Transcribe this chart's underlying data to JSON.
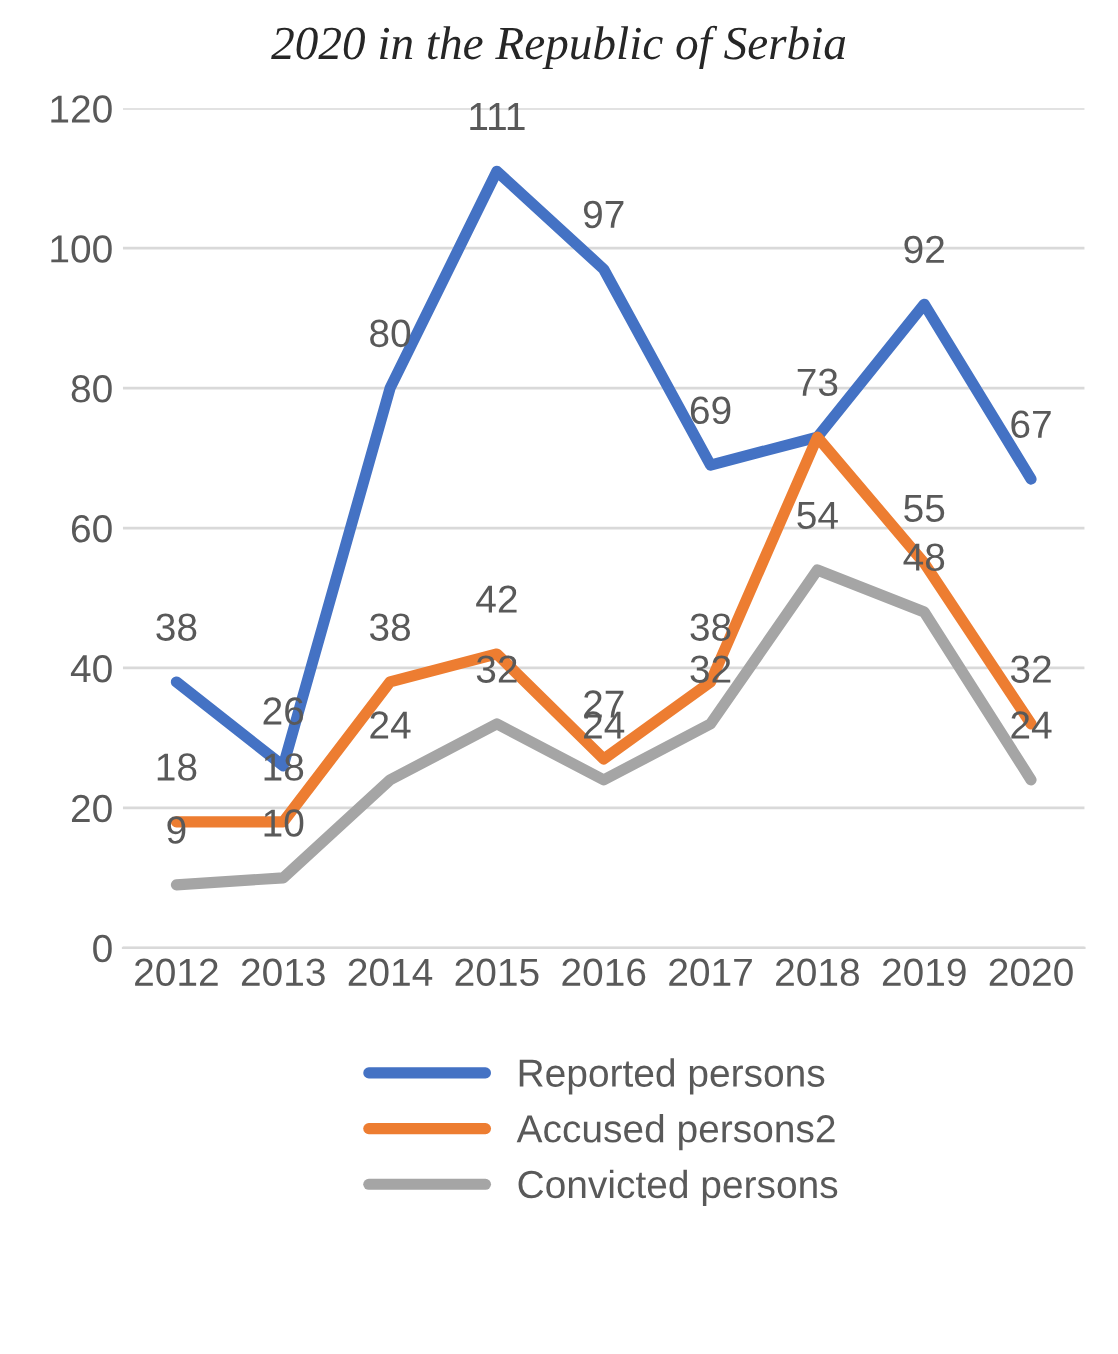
{
  "chart_data": {
    "type": "line",
    "title": "2020 in the Republic of Serbia",
    "categories": [
      "2012",
      "2013",
      "2014",
      "2015",
      "2016",
      "2017",
      "2018",
      "2019",
      "2020"
    ],
    "series": [
      {
        "name": "Reported persons",
        "color": "#4472c4",
        "values": [
          38,
          26,
          80,
          111,
          97,
          69,
          73,
          92,
          67
        ]
      },
      {
        "name": "Accused persons2",
        "color": "#ed7d31",
        "values": [
          18,
          18,
          38,
          42,
          27,
          38,
          73,
          55,
          32
        ],
        "value_labels": [
          "18",
          "18",
          "38",
          "42",
          "27",
          "38",
          null,
          "55",
          "32"
        ]
      },
      {
        "name": "Convicted persons",
        "color": "#a5a5a5",
        "values": [
          9,
          10,
          24,
          32,
          24,
          32,
          54,
          48,
          24
        ]
      }
    ],
    "ylim": [
      0,
      120
    ],
    "yticks": [
      0,
      20,
      40,
      60,
      80,
      100,
      120
    ],
    "grid": "y",
    "legend": "bottom",
    "data_labels": true,
    "marker": "none",
    "line_style": "solid"
  }
}
